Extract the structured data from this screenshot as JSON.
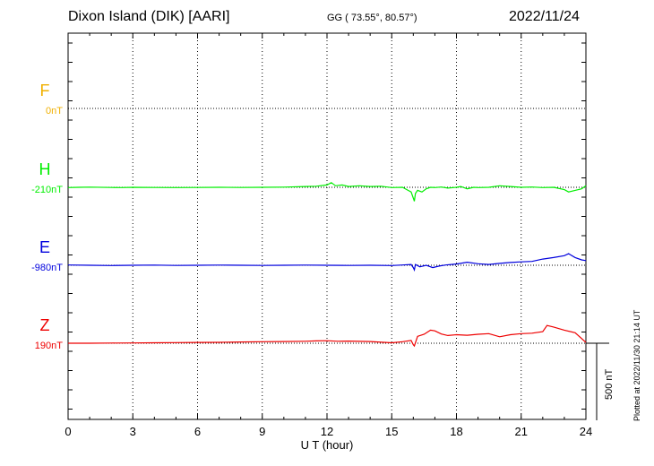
{
  "header": {
    "station": "Dixon Island (DIK)  [AARI]",
    "coords": "GG ( 73.55°,  80.57°)",
    "date": "2022/11/24"
  },
  "footer": {
    "plotted": "Plotted at 2022/11/30 21:14 UT",
    "scale": "500 nT"
  },
  "colors": {
    "F": "#f0b000",
    "H": "#00ee00",
    "E": "#0000dd",
    "Z": "#ee0000"
  },
  "chart_data": {
    "type": "line",
    "xlabel": "U T (hour)",
    "xlim": [
      0,
      24
    ],
    "xticks": [
      "0",
      "3",
      "6",
      "9",
      "12",
      "15",
      "18",
      "21",
      "24"
    ],
    "scale_bar_nT": 500,
    "series": [
      {
        "name": "F",
        "baseline": "0nT",
        "offset": 0,
        "color": "#f0b000",
        "x": [],
        "y": []
      },
      {
        "name": "H",
        "baseline": "-210nT",
        "offset": -210,
        "color": "#00ee00",
        "x": [
          0,
          0.5,
          1,
          2,
          2.5,
          3,
          4,
          5,
          6,
          7,
          8,
          9,
          10,
          11,
          11.5,
          12,
          12.2,
          12.4,
          12.7,
          13,
          13.5,
          14,
          14.5,
          15,
          15.5,
          15.7,
          15.9,
          16,
          16.05,
          16.1,
          16.2,
          16.4,
          16.6,
          16.8,
          17,
          17.3,
          17.6,
          18,
          18.2,
          18.5,
          18.8,
          19,
          19.5,
          20,
          20.5,
          21,
          21.5,
          22,
          22.5,
          23,
          23.2,
          23.5,
          23.8,
          24
        ],
        "y": [
          -212,
          -210,
          -209,
          -211,
          -212,
          -210,
          -211,
          -212,
          -211,
          -210,
          -211,
          -210,
          -209,
          -205,
          -203,
          -195,
          -180,
          -200,
          -195,
          -205,
          -200,
          -205,
          -203,
          -212,
          -210,
          -225,
          -240,
          -280,
          -300,
          -250,
          -230,
          -240,
          -220,
          -210,
          -212,
          -208,
          -215,
          -210,
          -205,
          -220,
          -210,
          -212,
          -210,
          -200,
          -205,
          -210,
          -208,
          -212,
          -210,
          -225,
          -240,
          -230,
          -220,
          -200
        ]
      },
      {
        "name": "E",
        "baseline": "-980nT",
        "offset": -980,
        "color": "#0000dd",
        "x": [
          0,
          1,
          2,
          3,
          4,
          5,
          6,
          7,
          8,
          9,
          10,
          11,
          12,
          13,
          14,
          15,
          15.5,
          15.9,
          16,
          16.05,
          16.1,
          16.3,
          16.6,
          16.9,
          17.2,
          17.5,
          18,
          18.5,
          19,
          19.5,
          20,
          20.5,
          21,
          21.5,
          22,
          22.5,
          23,
          23.2,
          23.5,
          23.8,
          24
        ],
        "y": [
          -978,
          -980,
          -982,
          -980,
          -979,
          -981,
          -980,
          -979,
          -980,
          -981,
          -980,
          -979,
          -980,
          -981,
          -980,
          -982,
          -978,
          -975,
          -995,
          -1010,
          -975,
          -990,
          -980,
          -995,
          -985,
          -978,
          -972,
          -960,
          -970,
          -975,
          -968,
          -962,
          -958,
          -955,
          -940,
          -930,
          -918,
          -905,
          -930,
          -945,
          -950
        ]
      },
      {
        "name": "Z",
        "baseline": "190nT",
        "offset": 190,
        "color": "#ee0000",
        "x": [
          0,
          1,
          2,
          3,
          4,
          5,
          6,
          7,
          8,
          9,
          10,
          11,
          11.5,
          12,
          12.5,
          13,
          14,
          15,
          15.5,
          15.9,
          16,
          16.05,
          16.2,
          16.5,
          16.8,
          17,
          17.3,
          17.6,
          18,
          18.5,
          19,
          19.5,
          20,
          20.5,
          21,
          21.5,
          22,
          22.2,
          22.5,
          23,
          23.5,
          24
        ],
        "y": [
          190,
          190,
          191,
          192,
          193,
          194,
          195,
          196,
          198,
          200,
          201,
          203,
          205,
          206,
          203,
          204,
          201,
          193,
          200,
          208,
          180,
          172,
          235,
          248,
          275,
          270,
          250,
          240,
          245,
          242,
          248,
          252,
          232,
          245,
          252,
          255,
          265,
          305,
          295,
          275,
          258,
          195
        ]
      }
    ]
  }
}
